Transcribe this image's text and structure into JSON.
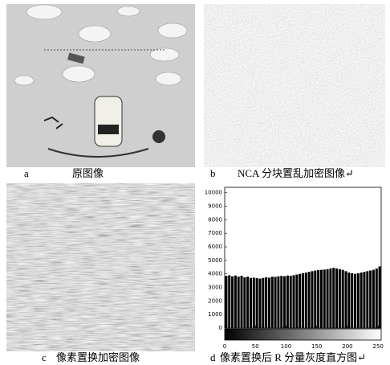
{
  "panels": [
    {
      "letter": "a",
      "caption": "原图像"
    },
    {
      "letter": "b",
      "caption": "NCA 分块置乱加密图像↵"
    },
    {
      "letter": "c",
      "caption": "像素置换加密图像"
    },
    {
      "letter": "d",
      "caption": "像素置换后 R 分量灰度直方图↵"
    }
  ],
  "chart_data": {
    "type": "histogram",
    "bins": [
      0,
      5,
      10,
      15,
      20,
      25,
      30,
      35,
      40,
      45,
      50,
      55,
      60,
      65,
      70,
      75,
      80,
      85,
      90,
      95,
      100,
      105,
      110,
      115,
      120,
      125,
      130,
      135,
      140,
      145,
      150,
      155,
      160,
      165,
      170,
      175,
      180,
      185,
      190,
      195,
      200,
      205,
      210,
      215,
      220,
      225,
      230,
      235,
      240,
      245,
      250,
      255
    ],
    "values": [
      3850,
      3900,
      3820,
      3880,
      3800,
      3860,
      3750,
      3800,
      3700,
      3720,
      3680,
      3650,
      3700,
      3750,
      3720,
      3800,
      3780,
      3820,
      3850,
      3830,
      3880,
      3850,
      3900,
      3950,
      4000,
      4050,
      4100,
      4150,
      4200,
      4250,
      4280,
      4300,
      4320,
      4350,
      4400,
      4450,
      4400,
      4350,
      4300,
      4200,
      4100,
      4050,
      4000,
      4050,
      4100,
      4150,
      4200,
      4250,
      4300,
      4400,
      4550
    ],
    "color": "#000000",
    "xlim": [
      0,
      255
    ],
    "xticks": [
      0,
      50,
      100,
      150,
      200,
      250
    ],
    "ylim": [
      0,
      10400
    ],
    "yticks": [
      0,
      1000,
      2000,
      3000,
      4000,
      5000,
      6000,
      7000,
      8000,
      9000,
      10000
    ]
  }
}
